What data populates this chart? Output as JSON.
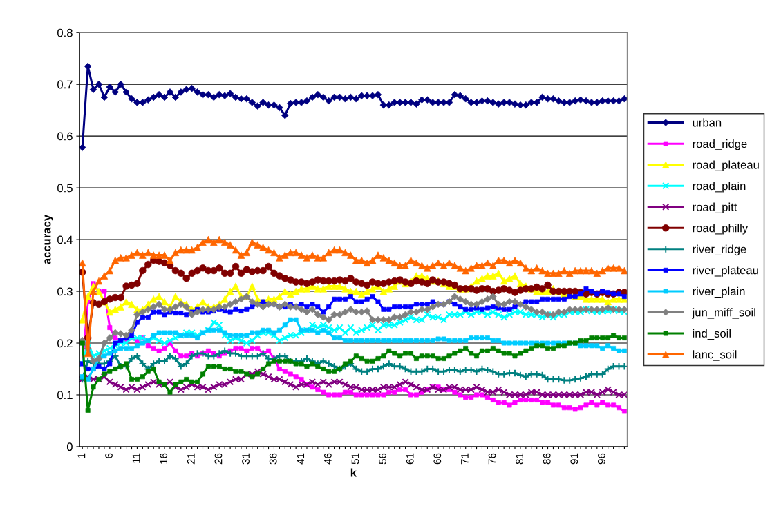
{
  "chart_data": {
    "type": "line",
    "xlabel": "k",
    "ylabel": "accuracy",
    "categories": [
      "1",
      null,
      null,
      null,
      null,
      "6",
      null,
      null,
      null,
      null,
      "11",
      null,
      null,
      null,
      null,
      "16",
      null,
      null,
      null,
      null,
      "21",
      null,
      null,
      null,
      null,
      "26",
      null,
      null,
      null,
      null,
      "31",
      null,
      null,
      null,
      null,
      "36",
      null,
      null,
      null,
      null,
      "41",
      null,
      null,
      null,
      null,
      "46",
      null,
      null,
      null,
      null,
      "51",
      null,
      null,
      null,
      null,
      "56",
      null,
      null,
      null,
      null,
      "61",
      null,
      null,
      null,
      null,
      "66",
      null,
      null,
      null,
      null,
      "71",
      null,
      null,
      null,
      null,
      "76",
      null,
      null,
      null,
      null,
      "81",
      null,
      null,
      null,
      null,
      "86",
      null,
      null,
      null,
      null,
      "91",
      null,
      null,
      null,
      null,
      "96",
      null,
      null,
      null,
      null
    ],
    "ylim": [
      0,
      0.8
    ],
    "yticks": [
      0,
      0.1,
      0.2,
      0.3,
      0.4,
      0.5,
      0.6,
      0.7,
      0.8
    ],
    "grid": "y",
    "legend": "right",
    "series": [
      {
        "name": "urban",
        "color": "#000080",
        "marker": "diamond",
        "values": [
          0.578,
          0.735,
          0.69,
          0.7,
          0.675,
          0.695,
          0.685,
          0.7,
          0.685,
          0.672,
          0.665,
          0.665,
          0.67,
          0.675,
          0.68,
          0.675,
          0.685,
          0.675,
          0.685,
          0.69,
          0.692,
          0.685,
          0.68,
          0.68,
          0.675,
          0.68,
          0.678,
          0.682,
          0.675,
          0.672,
          0.672,
          0.665,
          0.658,
          0.665,
          0.66,
          0.66,
          0.655,
          0.64,
          0.663,
          0.665,
          0.665,
          0.668,
          0.675,
          0.68,
          0.675,
          0.668,
          0.675,
          0.675,
          0.672,
          0.675,
          0.672,
          0.678,
          0.678,
          0.678,
          0.68,
          0.66,
          0.66,
          0.665,
          0.665,
          0.665,
          0.665,
          0.662,
          0.67,
          0.67,
          0.665,
          0.665,
          0.665,
          0.665,
          0.68,
          0.678,
          0.672,
          0.665,
          0.665,
          0.668,
          0.668,
          0.665,
          0.662,
          0.665,
          0.665,
          0.662,
          0.66,
          0.66,
          0.665,
          0.665,
          0.675,
          0.672,
          0.672,
          0.668,
          0.665,
          0.665,
          0.668,
          0.67,
          0.668,
          0.665,
          0.665,
          0.668,
          0.668,
          0.668,
          0.668,
          0.672
        ]
      },
      {
        "name": "road_ridge",
        "color": "#ff00ff",
        "marker": "square",
        "values": [
          0.16,
          0.28,
          0.315,
          0.3,
          0.3,
          0.23,
          0.21,
          0.205,
          0.205,
          0.21,
          0.205,
          0.21,
          0.195,
          0.19,
          0.185,
          0.19,
          0.2,
          0.185,
          0.175,
          0.175,
          0.18,
          0.175,
          0.18,
          0.185,
          0.18,
          0.175,
          0.18,
          0.185,
          0.19,
          0.19,
          0.185,
          0.19,
          0.19,
          0.18,
          0.185,
          0.17,
          0.15,
          0.145,
          0.14,
          0.135,
          0.13,
          0.12,
          0.115,
          0.11,
          0.105,
          0.1,
          0.1,
          0.1,
          0.105,
          0.105,
          0.1,
          0.1,
          0.1,
          0.1,
          0.1,
          0.1,
          0.105,
          0.105,
          0.11,
          0.11,
          0.1,
          0.1,
          0.105,
          0.11,
          0.115,
          0.115,
          0.11,
          0.11,
          0.105,
          0.1,
          0.095,
          0.095,
          0.1,
          0.1,
          0.095,
          0.09,
          0.085,
          0.085,
          0.08,
          0.085,
          0.09,
          0.09,
          0.09,
          0.09,
          0.085,
          0.085,
          0.08,
          0.08,
          0.075,
          0.075,
          0.072,
          0.075,
          0.08,
          0.085,
          0.08,
          0.085,
          0.08,
          0.08,
          0.075,
          0.068
        ]
      },
      {
        "name": "road_plateau",
        "color": "#ffff00",
        "marker": "triangle",
        "values": [
          0.245,
          0.29,
          0.31,
          0.3,
          0.28,
          0.26,
          0.265,
          0.27,
          0.28,
          0.275,
          0.265,
          0.265,
          0.275,
          0.285,
          0.29,
          0.28,
          0.27,
          0.29,
          0.28,
          0.275,
          0.265,
          0.27,
          0.28,
          0.27,
          0.27,
          0.275,
          0.285,
          0.3,
          0.31,
          0.29,
          0.29,
          0.31,
          0.285,
          0.28,
          0.285,
          0.285,
          0.29,
          0.3,
          0.295,
          0.3,
          0.305,
          0.305,
          0.31,
          0.305,
          0.305,
          0.31,
          0.31,
          0.31,
          0.305,
          0.3,
          0.3,
          0.295,
          0.3,
          0.305,
          0.31,
          0.3,
          0.305,
          0.31,
          0.32,
          0.315,
          0.32,
          0.33,
          0.33,
          0.325,
          0.32,
          0.32,
          0.315,
          0.31,
          0.31,
          0.305,
          0.305,
          0.31,
          0.32,
          0.325,
          0.33,
          0.33,
          0.335,
          0.32,
          0.325,
          0.33,
          0.315,
          0.31,
          0.305,
          0.3,
          0.3,
          0.3,
          0.305,
          0.3,
          0.295,
          0.295,
          0.29,
          0.29,
          0.285,
          0.285,
          0.285,
          0.285,
          0.28,
          0.285,
          0.285,
          0.285
        ]
      },
      {
        "name": "road_plain",
        "color": "#00ffff",
        "marker": "cross",
        "values": [
          0.16,
          0.2,
          0.175,
          0.18,
          0.185,
          0.19,
          0.195,
          0.2,
          0.2,
          0.21,
          0.21,
          0.21,
          0.205,
          0.21,
          0.205,
          0.2,
          0.205,
          0.21,
          0.215,
          0.22,
          0.22,
          0.215,
          0.22,
          0.225,
          0.24,
          0.235,
          0.215,
          0.205,
          0.21,
          0.205,
          0.2,
          0.205,
          0.215,
          0.22,
          0.22,
          0.215,
          0.205,
          0.21,
          0.215,
          0.215,
          0.22,
          0.225,
          0.235,
          0.23,
          0.235,
          0.23,
          0.225,
          0.23,
          0.22,
          0.23,
          0.22,
          0.225,
          0.23,
          0.235,
          0.225,
          0.235,
          0.235,
          0.235,
          0.24,
          0.245,
          0.25,
          0.245,
          0.245,
          0.255,
          0.25,
          0.25,
          0.245,
          0.255,
          0.255,
          0.255,
          0.26,
          0.255,
          0.26,
          0.26,
          0.255,
          0.26,
          0.255,
          0.25,
          0.255,
          0.26,
          0.26,
          0.255,
          0.255,
          0.255,
          0.25,
          0.255,
          0.25,
          0.255,
          0.255,
          0.26,
          0.26,
          0.26,
          0.265,
          0.262,
          0.26,
          0.262,
          0.262,
          0.265,
          0.262,
          0.26
        ]
      },
      {
        "name": "road_pitt",
        "color": "#800080",
        "marker": "cross",
        "values": [
          0.13,
          0.135,
          0.13,
          0.13,
          0.135,
          0.125,
          0.12,
          0.115,
          0.11,
          0.115,
          0.11,
          0.115,
          0.12,
          0.125,
          0.12,
          0.12,
          0.125,
          0.115,
          0.11,
          0.115,
          0.12,
          0.115,
          0.115,
          0.11,
          0.115,
          0.12,
          0.12,
          0.125,
          0.13,
          0.13,
          0.14,
          0.14,
          0.145,
          0.14,
          0.135,
          0.13,
          0.13,
          0.125,
          0.12,
          0.115,
          0.12,
          0.12,
          0.125,
          0.12,
          0.125,
          0.12,
          0.125,
          0.125,
          0.12,
          0.115,
          0.115,
          0.11,
          0.11,
          0.11,
          0.11,
          0.115,
          0.115,
          0.115,
          0.12,
          0.125,
          0.12,
          0.115,
          0.11,
          0.11,
          0.115,
          0.11,
          0.11,
          0.115,
          0.115,
          0.11,
          0.11,
          0.11,
          0.115,
          0.11,
          0.105,
          0.105,
          0.11,
          0.105,
          0.1,
          0.1,
          0.1,
          0.1,
          0.105,
          0.105,
          0.1,
          0.1,
          0.1,
          0.1,
          0.1,
          0.1,
          0.1,
          0.1,
          0.105,
          0.105,
          0.1,
          0.105,
          0.11,
          0.105,
          0.1,
          0.1
        ]
      },
      {
        "name": "road_philly",
        "color": "#800000",
        "marker": "circle",
        "values": [
          0.337,
          0.21,
          0.278,
          0.275,
          0.28,
          0.285,
          0.288,
          0.288,
          0.31,
          0.312,
          0.315,
          0.34,
          0.352,
          0.36,
          0.358,
          0.355,
          0.35,
          0.34,
          0.335,
          0.325,
          0.335,
          0.34,
          0.345,
          0.34,
          0.34,
          0.345,
          0.335,
          0.335,
          0.348,
          0.335,
          0.342,
          0.338,
          0.34,
          0.34,
          0.348,
          0.335,
          0.33,
          0.325,
          0.322,
          0.318,
          0.318,
          0.315,
          0.318,
          0.322,
          0.32,
          0.32,
          0.32,
          0.322,
          0.32,
          0.325,
          0.318,
          0.315,
          0.312,
          0.318,
          0.315,
          0.315,
          0.318,
          0.32,
          0.322,
          0.318,
          0.315,
          0.32,
          0.318,
          0.315,
          0.322,
          0.318,
          0.318,
          0.315,
          0.312,
          0.305,
          0.305,
          0.305,
          0.302,
          0.305,
          0.305,
          0.3,
          0.302,
          0.305,
          0.302,
          0.298,
          0.302,
          0.305,
          0.305,
          0.308,
          0.305,
          0.312,
          0.3,
          0.3,
          0.3,
          0.3,
          0.3,
          0.298,
          0.295,
          0.298,
          0.295,
          0.298,
          0.295,
          0.295,
          0.298,
          0.298
        ]
      },
      {
        "name": "river_ridge",
        "color": "#008080",
        "marker": "plus",
        "values": [
          0.13,
          0.165,
          0.16,
          0.16,
          0.16,
          0.165,
          0.175,
          0.155,
          0.155,
          0.17,
          0.175,
          0.16,
          0.15,
          0.16,
          0.165,
          0.165,
          0.175,
          0.17,
          0.155,
          0.16,
          0.175,
          0.18,
          0.18,
          0.175,
          0.175,
          0.18,
          0.185,
          0.18,
          0.18,
          0.175,
          0.175,
          0.175,
          0.175,
          0.18,
          0.17,
          0.17,
          0.175,
          0.175,
          0.165,
          0.165,
          0.165,
          0.17,
          0.165,
          0.16,
          0.165,
          0.16,
          0.155,
          0.15,
          0.155,
          0.16,
          0.15,
          0.145,
          0.145,
          0.15,
          0.15,
          0.155,
          0.16,
          0.155,
          0.155,
          0.15,
          0.145,
          0.145,
          0.145,
          0.15,
          0.15,
          0.145,
          0.145,
          0.148,
          0.148,
          0.145,
          0.148,
          0.148,
          0.145,
          0.15,
          0.148,
          0.145,
          0.14,
          0.14,
          0.142,
          0.142,
          0.138,
          0.135,
          0.14,
          0.14,
          0.138,
          0.13,
          0.13,
          0.13,
          0.128,
          0.128,
          0.13,
          0.132,
          0.135,
          0.14,
          0.14,
          0.14,
          0.15,
          0.155,
          0.155,
          0.155
        ]
      },
      {
        "name": "river_plateau",
        "color": "#0000ff",
        "marker": "square",
        "values": [
          0.16,
          0.15,
          0.15,
          0.155,
          0.15,
          0.16,
          0.2,
          0.205,
          0.21,
          0.215,
          0.24,
          0.25,
          0.25,
          0.26,
          0.26,
          0.255,
          0.26,
          0.258,
          0.258,
          0.255,
          0.26,
          0.265,
          0.26,
          0.26,
          0.262,
          0.265,
          0.262,
          0.26,
          0.265,
          0.262,
          0.265,
          0.27,
          0.275,
          0.28,
          0.275,
          0.275,
          0.27,
          0.27,
          0.275,
          0.27,
          0.275,
          0.27,
          0.275,
          0.27,
          0.26,
          0.27,
          0.285,
          0.285,
          0.285,
          0.29,
          0.28,
          0.28,
          0.285,
          0.29,
          0.28,
          0.265,
          0.265,
          0.27,
          0.27,
          0.27,
          0.27,
          0.275,
          0.275,
          0.275,
          0.28,
          0.275,
          0.275,
          0.28,
          0.275,
          0.27,
          0.265,
          0.265,
          0.268,
          0.265,
          0.268,
          0.27,
          0.268,
          0.265,
          0.265,
          0.27,
          0.275,
          0.28,
          0.28,
          0.28,
          0.285,
          0.285,
          0.285,
          0.285,
          0.285,
          0.29,
          0.29,
          0.295,
          0.305,
          0.3,
          0.295,
          0.3,
          0.298,
          0.295,
          0.295,
          0.29
        ]
      },
      {
        "name": "river_plain",
        "color": "#00ccff",
        "marker": "square",
        "values": [
          0.135,
          0.13,
          0.15,
          0.17,
          0.175,
          0.18,
          0.185,
          0.19,
          0.19,
          0.19,
          0.195,
          0.2,
          0.205,
          0.215,
          0.22,
          0.22,
          0.22,
          0.22,
          0.215,
          0.215,
          0.215,
          0.21,
          0.22,
          0.225,
          0.225,
          0.225,
          0.22,
          0.215,
          0.215,
          0.215,
          0.215,
          0.22,
          0.22,
          0.225,
          0.225,
          0.22,
          0.225,
          0.235,
          0.245,
          0.245,
          0.225,
          0.225,
          0.225,
          0.22,
          0.225,
          0.22,
          0.21,
          0.21,
          0.205,
          0.205,
          0.205,
          0.205,
          0.205,
          0.205,
          0.205,
          0.205,
          0.205,
          0.205,
          0.205,
          0.205,
          0.205,
          0.205,
          0.205,
          0.205,
          0.205,
          0.208,
          0.208,
          0.205,
          0.205,
          0.205,
          0.205,
          0.21,
          0.21,
          0.21,
          0.21,
          0.205,
          0.205,
          0.2,
          0.2,
          0.2,
          0.2,
          0.2,
          0.2,
          0.2,
          0.2,
          0.2,
          0.2,
          0.2,
          0.2,
          0.2,
          0.2,
          0.195,
          0.195,
          0.195,
          0.195,
          0.19,
          0.195,
          0.19,
          0.185,
          0.185
        ]
      },
      {
        "name": "jun_miff_soil",
        "color": "#808080",
        "marker": "diamond",
        "values": [
          0.205,
          0.19,
          0.165,
          0.17,
          0.2,
          0.21,
          0.22,
          0.218,
          0.215,
          0.225,
          0.255,
          0.26,
          0.265,
          0.27,
          0.275,
          0.265,
          0.265,
          0.27,
          0.275,
          0.27,
          0.255,
          0.26,
          0.265,
          0.265,
          0.265,
          0.27,
          0.27,
          0.275,
          0.28,
          0.285,
          0.29,
          0.28,
          0.275,
          0.27,
          0.275,
          0.275,
          0.27,
          0.275,
          0.27,
          0.27,
          0.265,
          0.26,
          0.265,
          0.255,
          0.25,
          0.245,
          0.255,
          0.255,
          0.26,
          0.265,
          0.26,
          0.26,
          0.262,
          0.245,
          0.245,
          0.245,
          0.245,
          0.25,
          0.25,
          0.255,
          0.26,
          0.26,
          0.265,
          0.265,
          0.27,
          0.275,
          0.275,
          0.28,
          0.29,
          0.285,
          0.28,
          0.275,
          0.275,
          0.28,
          0.285,
          0.29,
          0.275,
          0.275,
          0.28,
          0.28,
          0.275,
          0.27,
          0.265,
          0.26,
          0.26,
          0.255,
          0.255,
          0.26,
          0.26,
          0.265,
          0.265,
          0.265,
          0.265,
          0.265,
          0.265,
          0.265,
          0.268,
          0.265,
          0.265,
          0.265
        ]
      },
      {
        "name": "ind_soil",
        "color": "#008000",
        "marker": "square",
        "values": [
          0.2,
          0.07,
          0.115,
          0.13,
          0.14,
          0.145,
          0.15,
          0.155,
          0.16,
          0.13,
          0.13,
          0.135,
          0.145,
          0.15,
          0.125,
          0.12,
          0.105,
          0.12,
          0.125,
          0.13,
          0.125,
          0.125,
          0.14,
          0.155,
          0.155,
          0.155,
          0.15,
          0.15,
          0.145,
          0.145,
          0.14,
          0.135,
          0.14,
          0.15,
          0.16,
          0.165,
          0.165,
          0.165,
          0.165,
          0.16,
          0.16,
          0.155,
          0.16,
          0.155,
          0.15,
          0.145,
          0.145,
          0.15,
          0.16,
          0.165,
          0.175,
          0.17,
          0.165,
          0.165,
          0.17,
          0.175,
          0.185,
          0.18,
          0.175,
          0.18,
          0.18,
          0.17,
          0.175,
          0.175,
          0.175,
          0.17,
          0.17,
          0.175,
          0.18,
          0.185,
          0.19,
          0.18,
          0.175,
          0.185,
          0.185,
          0.19,
          0.185,
          0.18,
          0.18,
          0.175,
          0.18,
          0.185,
          0.19,
          0.195,
          0.195,
          0.19,
          0.19,
          0.195,
          0.195,
          0.2,
          0.2,
          0.205,
          0.205,
          0.21,
          0.21,
          0.21,
          0.21,
          0.215,
          0.21,
          0.21
        ]
      },
      {
        "name": "lanc_soil",
        "color": "#ff6600",
        "marker": "triangle",
        "values": [
          0.355,
          0.18,
          0.3,
          0.32,
          0.33,
          0.34,
          0.36,
          0.365,
          0.365,
          0.37,
          0.375,
          0.37,
          0.375,
          0.37,
          0.37,
          0.37,
          0.36,
          0.375,
          0.38,
          0.38,
          0.38,
          0.385,
          0.395,
          0.4,
          0.395,
          0.4,
          0.395,
          0.39,
          0.38,
          0.37,
          0.375,
          0.395,
          0.39,
          0.385,
          0.38,
          0.375,
          0.365,
          0.37,
          0.375,
          0.375,
          0.37,
          0.365,
          0.37,
          0.365,
          0.365,
          0.375,
          0.38,
          0.38,
          0.375,
          0.37,
          0.36,
          0.36,
          0.355,
          0.36,
          0.37,
          0.365,
          0.36,
          0.355,
          0.35,
          0.35,
          0.36,
          0.355,
          0.35,
          0.345,
          0.35,
          0.355,
          0.35,
          0.355,
          0.35,
          0.345,
          0.34,
          0.345,
          0.35,
          0.35,
          0.355,
          0.35,
          0.36,
          0.36,
          0.355,
          0.36,
          0.355,
          0.345,
          0.34,
          0.345,
          0.34,
          0.335,
          0.335,
          0.335,
          0.34,
          0.335,
          0.34,
          0.34,
          0.34,
          0.34,
          0.335,
          0.34,
          0.345,
          0.345,
          0.345,
          0.34
        ]
      }
    ]
  }
}
